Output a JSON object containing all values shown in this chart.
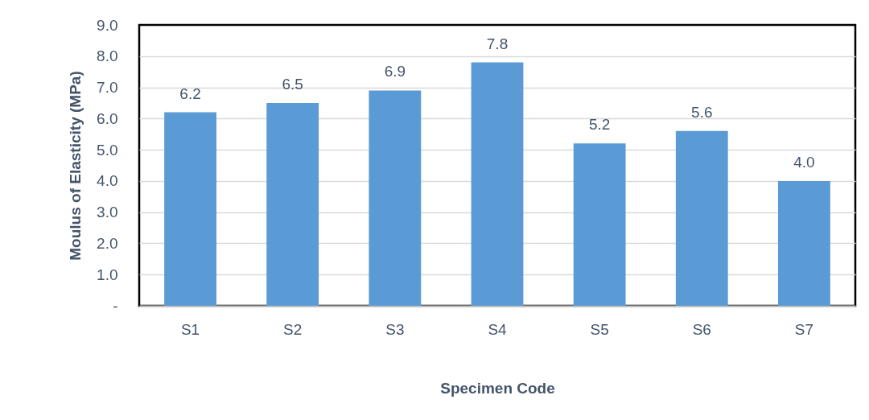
{
  "chart_data": {
    "type": "bar",
    "xlabel": "Specimen Code",
    "ylabel": "Moulus of Elasticity (MPa)",
    "categories": [
      "S1",
      "S2",
      "S3",
      "S4",
      "S5",
      "S6",
      "S7"
    ],
    "values": [
      6.2,
      6.5,
      6.9,
      7.8,
      5.2,
      5.6,
      4.0
    ],
    "value_labels": [
      "6.2",
      "6.5",
      "6.9",
      "7.8",
      "5.2",
      "5.6",
      "4.0"
    ],
    "color": "#5b9bd5",
    "ylim": [
      0,
      9
    ],
    "yticks": [
      {
        "value": 0,
        "label": "-"
      },
      {
        "value": 1,
        "label": "1.0"
      },
      {
        "value": 2,
        "label": "2.0"
      },
      {
        "value": 3,
        "label": "3.0"
      },
      {
        "value": 4,
        "label": "4.0"
      },
      {
        "value": 5,
        "label": "5.0"
      },
      {
        "value": 6,
        "label": "6.0"
      },
      {
        "value": 7,
        "label": "7.0"
      },
      {
        "value": 8,
        "label": "8.0"
      },
      {
        "value": 9,
        "label": "9.0"
      }
    ],
    "grid": "y"
  }
}
